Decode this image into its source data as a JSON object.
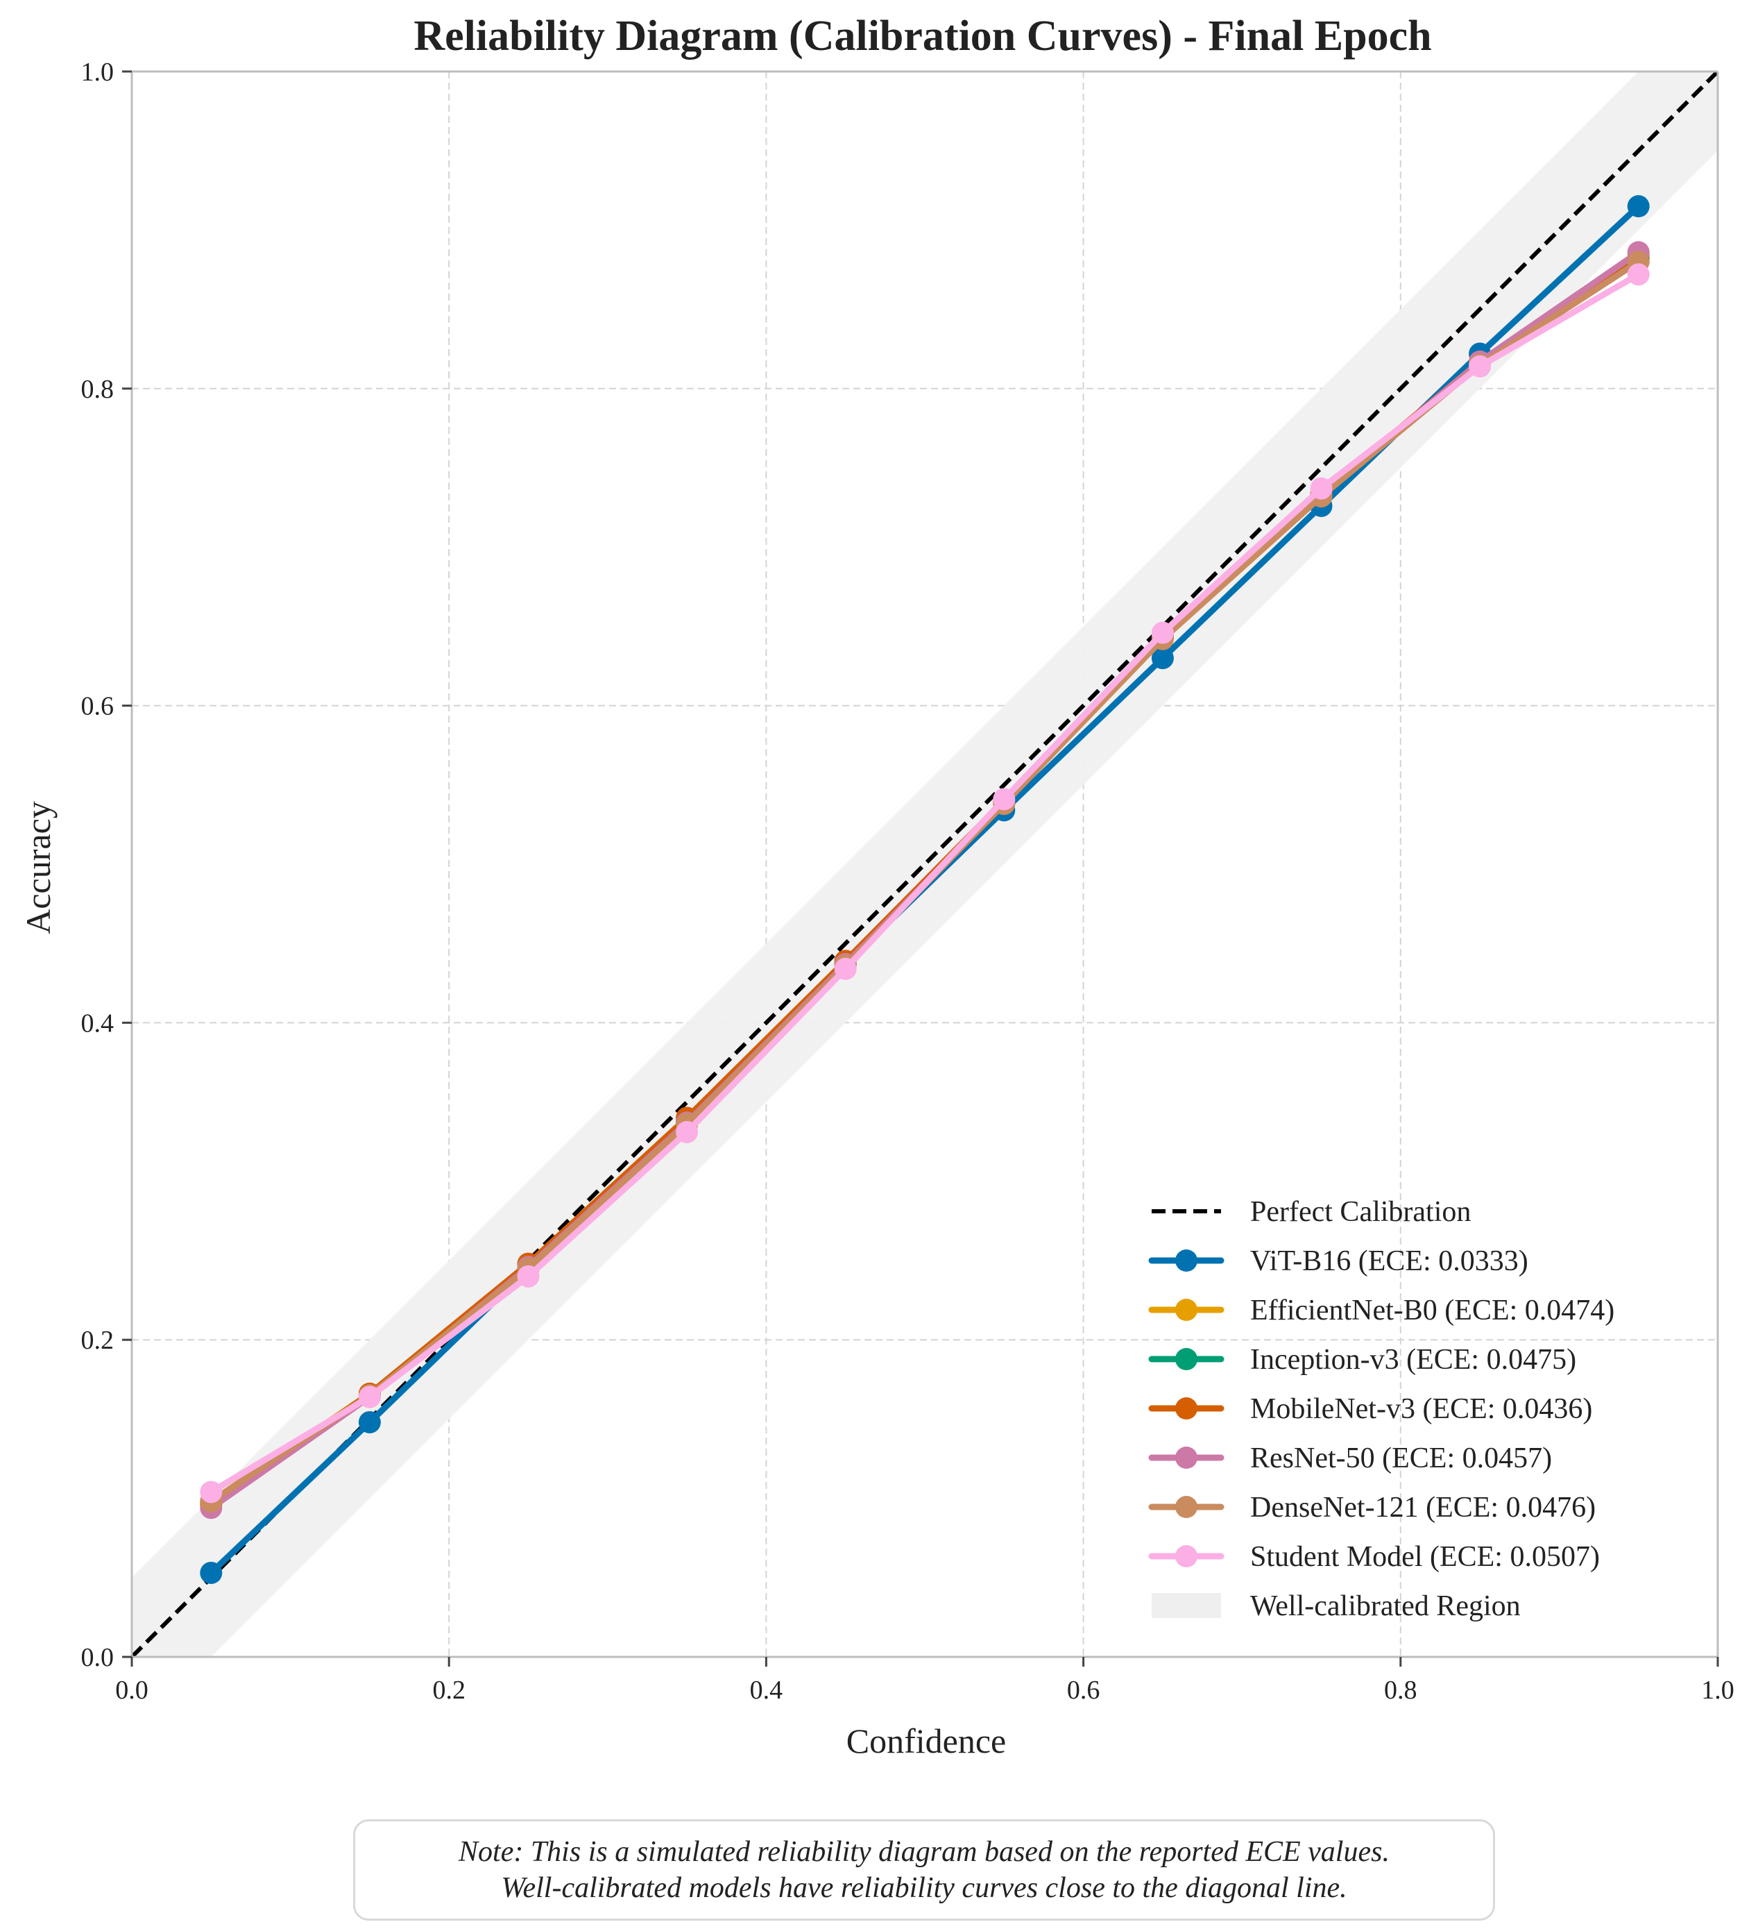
{
  "chart_data": {
    "type": "line",
    "title": "Reliability Diagram (Calibration Curves) - Final Epoch",
    "xlabel": "Confidence",
    "ylabel": "Accuracy",
    "xlim": [
      0,
      1
    ],
    "ylim": [
      0,
      1
    ],
    "xticks": [
      "0.0",
      "0.2",
      "0.4",
      "0.6",
      "0.8",
      "1.0"
    ],
    "yticks": [
      "0.0",
      "0.2",
      "0.4",
      "0.6",
      "0.8",
      "1.0"
    ],
    "grid": true,
    "legend_position": "lower-right",
    "x": [
      0.05,
      0.15,
      0.25,
      0.35,
      0.45,
      0.55,
      0.65,
      0.75,
      0.85,
      0.95
    ],
    "reference": {
      "name": "Perfect Calibration",
      "color": "#000000",
      "style": "dashed",
      "points": [
        [
          0,
          0
        ],
        [
          1,
          1
        ]
      ]
    },
    "band": {
      "name": "Well-calibrated Region",
      "color": "#f0f0f0",
      "offset": 0.05
    },
    "series": [
      {
        "name": "ViT-B16 (ECE: 0.0333)",
        "color": "#0072b2",
        "values": [
          0.053,
          0.148,
          0.245,
          0.337,
          0.437,
          0.534,
          0.63,
          0.726,
          0.822,
          0.915
        ]
      },
      {
        "name": "EfficientNet-B0 (ECE: 0.0474)",
        "color": "#e69f00",
        "values": [
          0.098,
          0.166,
          0.247,
          0.338,
          0.438,
          0.54,
          0.644,
          0.733,
          0.816,
          0.882
        ]
      },
      {
        "name": "Inception-v3 (ECE: 0.0475)",
        "color": "#009e73",
        "values": [
          0.097,
          0.165,
          0.246,
          0.337,
          0.437,
          0.539,
          0.643,
          0.732,
          0.816,
          0.882
        ]
      },
      {
        "name": "MobileNet-v3 (ECE: 0.0436)",
        "color": "#d55e00",
        "values": [
          0.096,
          0.166,
          0.248,
          0.34,
          0.439,
          0.54,
          0.644,
          0.734,
          0.817,
          0.885
        ]
      },
      {
        "name": "ResNet-50 (ECE: 0.0457)",
        "color": "#cc79a7",
        "values": [
          0.094,
          0.164,
          0.246,
          0.337,
          0.437,
          0.539,
          0.643,
          0.733,
          0.817,
          0.886
        ]
      },
      {
        "name": "DenseNet-121 (ECE: 0.0476)",
        "color": "#ca8b5f",
        "values": [
          0.098,
          0.165,
          0.245,
          0.336,
          0.436,
          0.538,
          0.642,
          0.732,
          0.815,
          0.88
        ]
      },
      {
        "name": "Student Model (ECE: 0.0507)",
        "color": "#fbafe4",
        "values": [
          0.104,
          0.164,
          0.24,
          0.331,
          0.434,
          0.541,
          0.646,
          0.737,
          0.814,
          0.872
        ]
      }
    ]
  },
  "note": {
    "line1": "Note: This is a simulated reliability diagram based on the reported ECE values.",
    "line2": "Well-calibrated models have reliability curves close to the diagonal line."
  }
}
